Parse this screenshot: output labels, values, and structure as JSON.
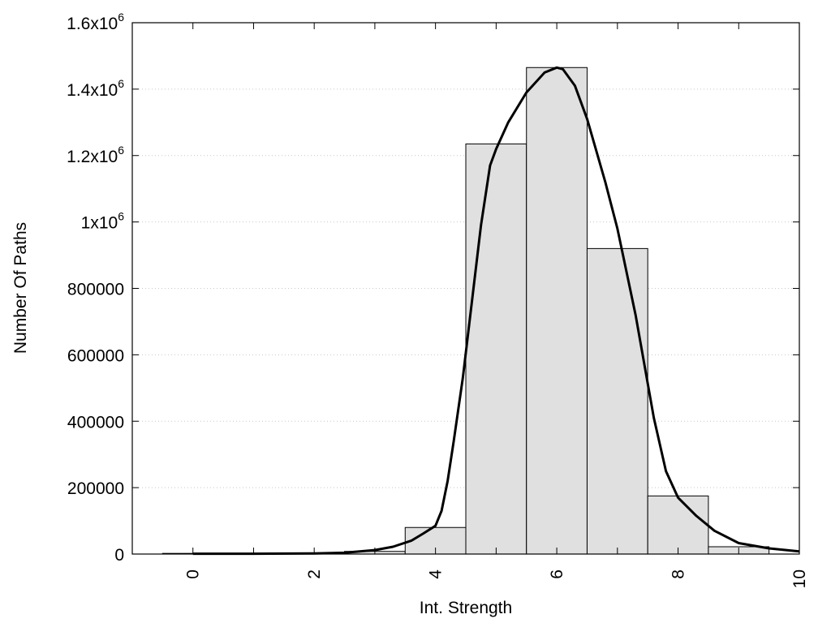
{
  "chart_data": {
    "type": "bar",
    "xlabel": "Int. Strength",
    "ylabel": "Number Of Paths",
    "xlim": [
      -1,
      10
    ],
    "ylim": [
      0,
      1600000
    ],
    "grid": "horizontal dotted",
    "x_ticks": [
      {
        "value": 0,
        "label": "0"
      },
      {
        "value": 2,
        "label": "2"
      },
      {
        "value": 4,
        "label": "4"
      },
      {
        "value": 6,
        "label": "6"
      },
      {
        "value": 8,
        "label": "8"
      },
      {
        "value": 10,
        "label": "10"
      }
    ],
    "y_ticks": [
      {
        "value": 0,
        "label": "0",
        "sup": ""
      },
      {
        "value": 200000,
        "label": "200000",
        "sup": ""
      },
      {
        "value": 400000,
        "label": "400000",
        "sup": ""
      },
      {
        "value": 600000,
        "label": "600000",
        "sup": ""
      },
      {
        "value": 800000,
        "label": "800000",
        "sup": ""
      },
      {
        "value": 1000000,
        "label": "1x10",
        "sup": "6"
      },
      {
        "value": 1200000,
        "label": "1.2x10",
        "sup": "6"
      },
      {
        "value": 1400000,
        "label": "1.4x10",
        "sup": "6"
      },
      {
        "value": 1600000,
        "label": "1.6x10",
        "sup": "6"
      }
    ],
    "histogram": {
      "bin_width": 1,
      "bins": [
        {
          "x": 0,
          "value": 2000
        },
        {
          "x": 1,
          "value": 2000
        },
        {
          "x": 2,
          "value": 3000
        },
        {
          "x": 3,
          "value": 8000
        },
        {
          "x": 4,
          "value": 80000
        },
        {
          "x": 5,
          "value": 1235000
        },
        {
          "x": 6,
          "value": 1465000
        },
        {
          "x": 7,
          "value": 920000
        },
        {
          "x": 8,
          "value": 175000
        },
        {
          "x": 9,
          "value": 22000
        }
      ]
    },
    "curve": {
      "x": [
        0,
        1,
        2,
        2.5,
        3,
        3.3,
        3.6,
        3.8,
        4.0,
        4.1,
        4.2,
        4.3,
        4.45,
        4.6,
        4.75,
        4.9,
        5.0,
        5.2,
        5.5,
        5.8,
        6.0,
        6.1,
        6.3,
        6.5,
        6.8,
        7.0,
        7.3,
        7.6,
        7.8,
        8.0,
        8.3,
        8.6,
        9.0,
        9.5,
        10.0
      ],
      "y": [
        1000,
        1000,
        2000,
        4000,
        12000,
        22000,
        40000,
        62000,
        85000,
        130000,
        220000,
        340000,
        530000,
        760000,
        990000,
        1170000,
        1220000,
        1300000,
        1390000,
        1450000,
        1465000,
        1460000,
        1410000,
        1310000,
        1120000,
        980000,
        720000,
        410000,
        250000,
        170000,
        115000,
        70000,
        33000,
        17000,
        8000
      ]
    }
  }
}
